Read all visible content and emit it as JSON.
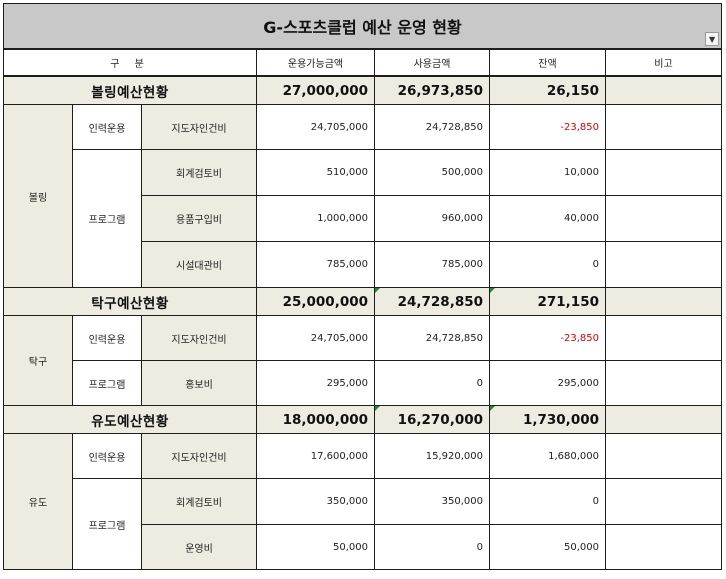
{
  "title": "G-스포츠클럽 예산 운영 현황",
  "headers": {
    "category": "구 분",
    "available": "운용가능금액",
    "used": "사용금액",
    "balance": "잔액",
    "note": "비고"
  },
  "bowling": {
    "summary": {
      "name": "볼링예산현황",
      "available": "27,000,000",
      "used": "26,973,850",
      "balance": "26,150"
    },
    "group": "볼링",
    "sub_staff": "인력운용",
    "sub_program": "프로그램",
    "rows": [
      {
        "item": "지도자인건비",
        "available": "24,705,000",
        "used": "24,728,850",
        "balance": "-23,850"
      },
      {
        "item": "회계검토비",
        "available": "510,000",
        "used": "500,000",
        "balance": "10,000"
      },
      {
        "item": "용품구입비",
        "available": "1,000,000",
        "used": "960,000",
        "balance": "40,000"
      },
      {
        "item": "시설대관비",
        "available": "785,000",
        "used": "785,000",
        "balance": "0"
      }
    ]
  },
  "tabletennis": {
    "summary": {
      "name": "탁구예산현황",
      "available": "25,000,000",
      "used": "24,728,850",
      "balance": "271,150"
    },
    "group": "탁구",
    "sub_staff": "인력운용",
    "sub_program": "프로그램",
    "rows": [
      {
        "item": "지도자인건비",
        "available": "24,705,000",
        "used": "24,728,850",
        "balance": "-23,850"
      },
      {
        "item": "홍보비",
        "available": "295,000",
        "used": "0",
        "balance": "295,000"
      }
    ]
  },
  "judo": {
    "summary": {
      "name": "유도예산현황",
      "available": "18,000,000",
      "used": "16,270,000",
      "balance": "1,730,000"
    },
    "group": "유도",
    "sub_staff": "인력운용",
    "sub_program": "프로그램",
    "rows": [
      {
        "item": "지도자인건비",
        "available": "17,600,000",
        "used": "15,920,000",
        "balance": "1,680,000"
      },
      {
        "item": "회계검토비",
        "available": "350,000",
        "used": "350,000",
        "balance": "0"
      },
      {
        "item": "운영비",
        "available": "50,000",
        "used": "0",
        "balance": "50,000"
      }
    ]
  },
  "colors": {
    "title_bg": "#c8c8c8",
    "band_bg": "#eeece1",
    "negative": "#e00000",
    "grid": "#1e1e1e"
  }
}
